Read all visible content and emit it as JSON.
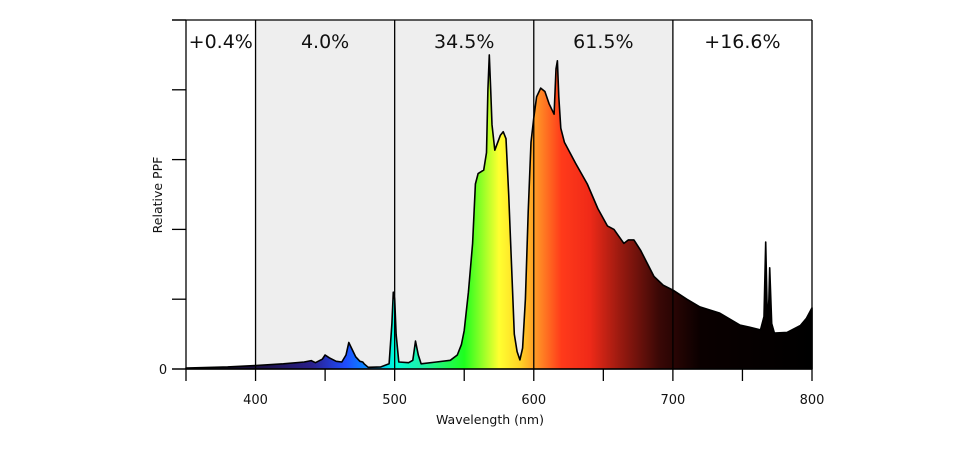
{
  "chart_data": {
    "type": "area",
    "title": "",
    "xlabel": "Wavelength (nm)",
    "ylabel": "Relative PPF",
    "xlim": [
      350,
      800
    ],
    "ylim": [
      0,
      1
    ],
    "x_ticks": [
      350,
      400,
      450,
      500,
      550,
      600,
      650,
      700,
      750,
      800
    ],
    "x_tick_labels": [
      "",
      "400",
      "",
      "500",
      "",
      "600",
      "",
      "700",
      "",
      "800"
    ],
    "y_ticks": [
      0,
      0.2,
      0.4,
      0.6,
      0.8,
      1.0
    ],
    "y_tick_labels": [
      "0",
      "",
      "",
      "",
      "",
      ""
    ],
    "grid": false,
    "bands": [
      {
        "range": [
          350,
          400
        ],
        "label": "+0.4%",
        "shaded": false
      },
      {
        "range": [
          400,
          500
        ],
        "label": "4.0%",
        "shaded": true
      },
      {
        "range": [
          500,
          600
        ],
        "label": "34.5%",
        "shaded": true
      },
      {
        "range": [
          600,
          700
        ],
        "label": "61.5%",
        "shaded": true
      },
      {
        "range": [
          700,
          800
        ],
        "label": "+16.6%",
        "shaded": false
      }
    ],
    "band_shade_color": "#eeeeee",
    "series": [
      {
        "name": "Relative PPF",
        "x": [
          350,
          380,
          400,
          420,
          435,
          440,
          443,
          448,
          450,
          453,
          458,
          462,
          465,
          467,
          469,
          472,
          475,
          477,
          478,
          481,
          490,
          496,
          498,
          499,
          500,
          501,
          503,
          510,
          513,
          515,
          517,
          519,
          530,
          540,
          545,
          548,
          550,
          553,
          556,
          558,
          560,
          564,
          566,
          567,
          568,
          569,
          570,
          572,
          576,
          578,
          580,
          582,
          584,
          586,
          588,
          590,
          592,
          594,
          596,
          598,
          600,
          602,
          605,
          608,
          611,
          614.6,
          616,
          617,
          618,
          619.4,
          622,
          630,
          638.5,
          646,
          652.9,
          657.7,
          664.8,
          668,
          672,
          676.8,
          686.4,
          693,
          700,
          710,
          719.4,
          733.7,
          748,
          755,
          763,
          765.5,
          766.7,
          768,
          769,
          769.6,
          771,
          773,
          782,
          791.7,
          796,
          800
        ],
        "y": [
          0.003,
          0.006,
          0.01,
          0.015,
          0.02,
          0.024,
          0.018,
          0.028,
          0.04,
          0.032,
          0.022,
          0.02,
          0.04,
          0.076,
          0.06,
          0.035,
          0.022,
          0.02,
          0.015,
          0.005,
          0.006,
          0.015,
          0.13,
          0.22,
          0.2,
          0.1,
          0.02,
          0.018,
          0.025,
          0.08,
          0.04,
          0.015,
          0.02,
          0.025,
          0.04,
          0.07,
          0.11,
          0.22,
          0.36,
          0.53,
          0.56,
          0.57,
          0.62,
          0.8,
          0.9,
          0.8,
          0.7,
          0.627,
          0.67,
          0.68,
          0.66,
          0.5,
          0.3,
          0.1,
          0.05,
          0.026,
          0.06,
          0.2,
          0.45,
          0.65,
          0.72,
          0.78,
          0.805,
          0.795,
          0.76,
          0.73,
          0.86,
          0.883,
          0.78,
          0.69,
          0.65,
          0.59,
          0.53,
          0.46,
          0.41,
          0.4,
          0.36,
          0.37,
          0.37,
          0.34,
          0.265,
          0.24,
          0.226,
          0.2,
          0.178,
          0.16,
          0.126,
          0.12,
          0.112,
          0.15,
          0.364,
          0.12,
          0.2,
          0.29,
          0.13,
          0.103,
          0.105,
          0.125,
          0.145,
          0.175
        ]
      }
    ],
    "color_stops": [
      {
        "nm": 350,
        "color": "#0a0614"
      },
      {
        "nm": 400,
        "color": "#1a0f40"
      },
      {
        "nm": 440,
        "color": "#2a1f8a"
      },
      {
        "nm": 465,
        "color": "#1f4dff"
      },
      {
        "nm": 485,
        "color": "#00a0ff"
      },
      {
        "nm": 500,
        "color": "#00ffd8"
      },
      {
        "nm": 520,
        "color": "#20f0a8"
      },
      {
        "nm": 550,
        "color": "#1eff1e"
      },
      {
        "nm": 575,
        "color": "#ffff30"
      },
      {
        "nm": 590,
        "color": "#ffd426"
      },
      {
        "nm": 602,
        "color": "#ff9426"
      },
      {
        "nm": 620,
        "color": "#ff3a1a"
      },
      {
        "nm": 640,
        "color": "#f02a18"
      },
      {
        "nm": 662,
        "color": "#9a1a10"
      },
      {
        "nm": 690,
        "color": "#3a0806"
      },
      {
        "nm": 720,
        "color": "#0a0000"
      },
      {
        "nm": 800,
        "color": "#000000"
      }
    ]
  }
}
